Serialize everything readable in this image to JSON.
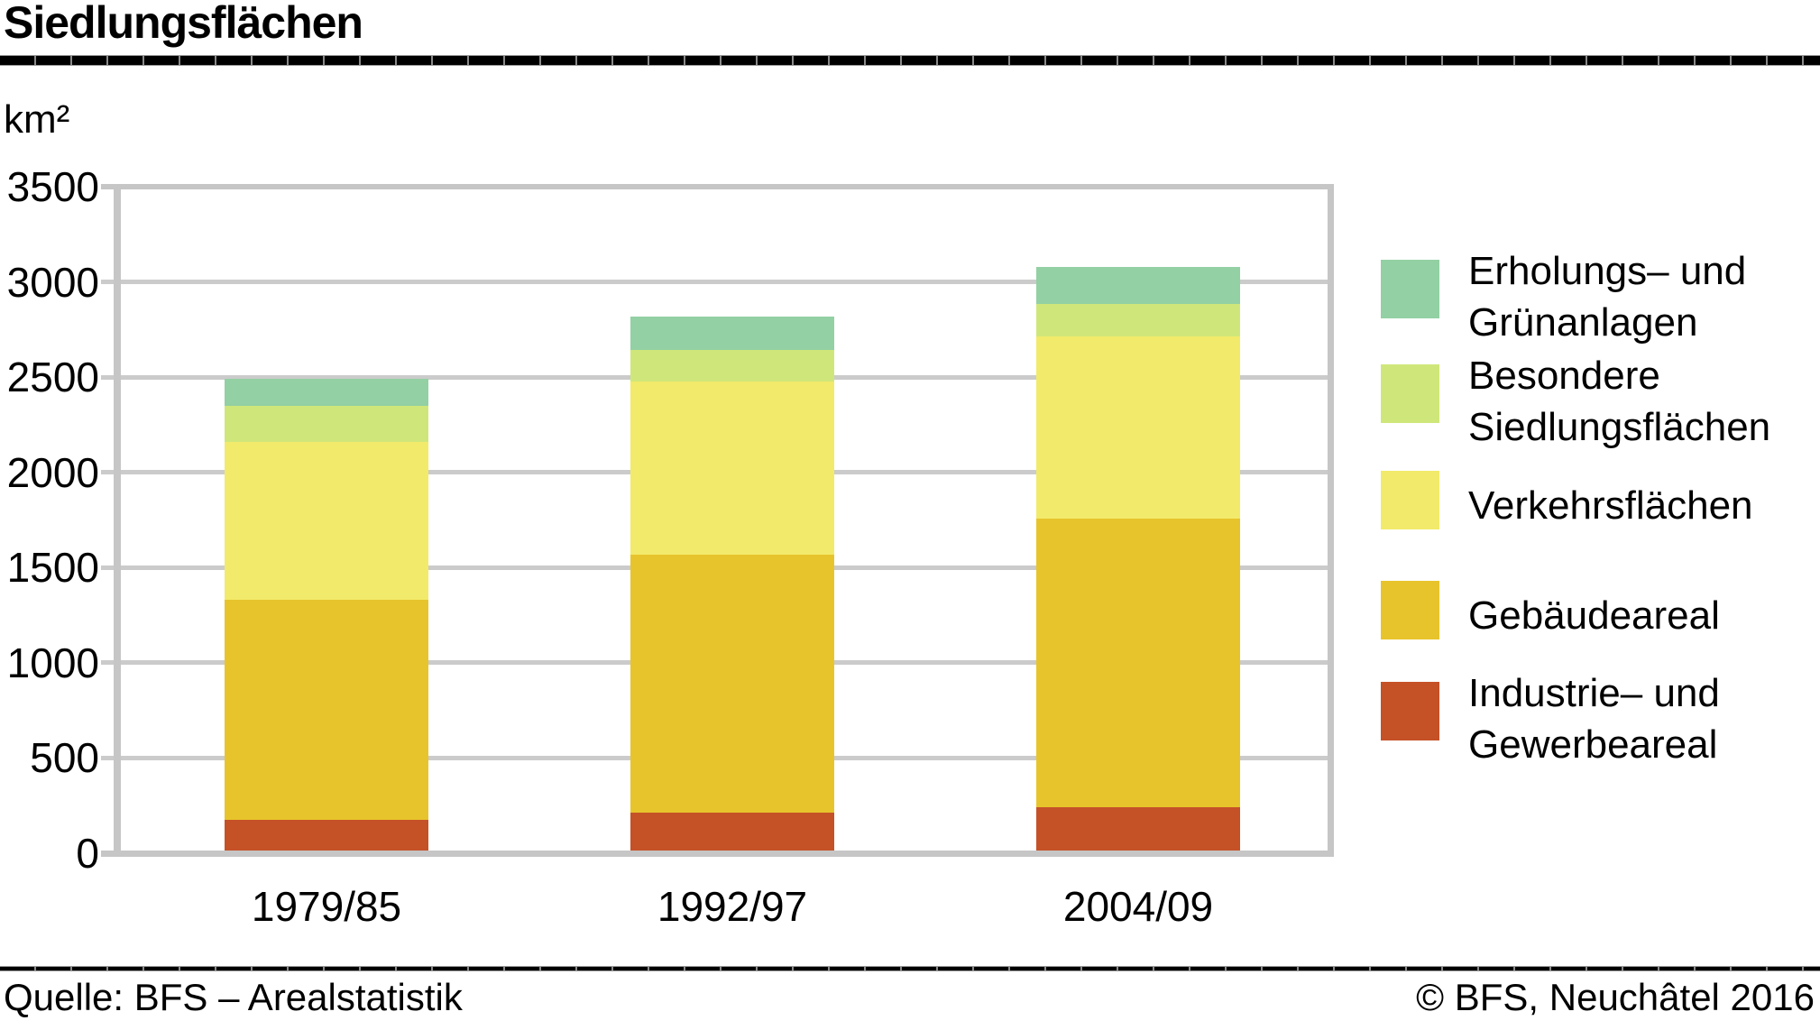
{
  "header": {
    "title": "Siedlungsflächen"
  },
  "y_axis_unit": "km²",
  "chart_data": {
    "type": "bar",
    "stacked": true,
    "title": "Siedlungsflächen",
    "ylabel": "km²",
    "xlabel": "",
    "ylim": [
      0,
      3500
    ],
    "ytick_step": 500,
    "grid": true,
    "legend_position": "right",
    "categories": [
      "1979/85",
      "1992/97",
      "2004/09"
    ],
    "series": [
      {
        "name": "Industrie– und Gewerbeareal",
        "color": "#c55127",
        "values": [
          175,
          215,
          242
        ]
      },
      {
        "name": "Gebäudeareal",
        "color": "#e7c42c",
        "values": [
          1156,
          1352,
          1517
        ]
      },
      {
        "name": "Verkehrsflächen",
        "color": "#f2ea6b",
        "values": [
          830,
          912,
          956
        ]
      },
      {
        "name": "Besondere Siedlungsflächen",
        "color": "#cfe77a",
        "values": [
          190,
          166,
          171
        ]
      },
      {
        "name": "Erholungs– und Grünanlagen",
        "color": "#93d0a3",
        "values": [
          139,
          174,
          194
        ]
      }
    ],
    "totals": [
      2490,
      2819,
      3080
    ]
  },
  "legend": {
    "items": [
      {
        "label": "Erholungs– und Grünanlagen",
        "color": "#93d0a3"
      },
      {
        "label": "Besondere Siedlungsflächen",
        "color": "#cfe77a"
      },
      {
        "label": "Verkehrsflächen",
        "color": "#f2ea6b"
      },
      {
        "label": "Gebäudeareal",
        "color": "#e7c42c"
      },
      {
        "label": "Industrie– und Gewerbeareal",
        "color": "#c55127"
      }
    ]
  },
  "footer": {
    "source": "Quelle: BFS – Arealstatistik",
    "copyright": "© BFS, Neuchâtel 2016"
  },
  "colors": {
    "grid": "#cbcbcb",
    "frame": "#c6c6c6",
    "rule": "#000000",
    "text": "#000000"
  }
}
